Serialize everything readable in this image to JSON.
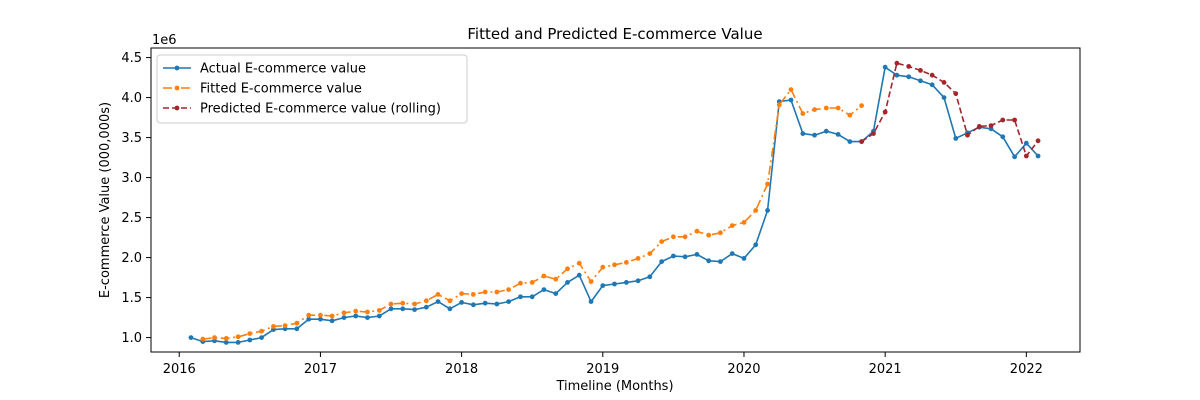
{
  "chart_data": {
    "type": "line",
    "title": "Fitted and Predicted E-commerce Value",
    "xlabel": "Timeline (Months)",
    "ylabel": "E-commerce Value (000,000s)",
    "y_offset_label": "1e6",
    "xlim": [
      2015.8,
      2022.38
    ],
    "ylim": [
      820000,
      4620000
    ],
    "x_ticks": [
      2016,
      2017,
      2018,
      2019,
      2020,
      2021,
      2022
    ],
    "x_tick_labels": [
      "2016",
      "2017",
      "2018",
      "2019",
      "2020",
      "2021",
      "2022"
    ],
    "y_ticks": [
      1000000,
      1500000,
      2000000,
      2500000,
      3000000,
      3500000,
      4000000,
      4500000
    ],
    "y_tick_labels": [
      "1.0",
      "1.5",
      "2.0",
      "2.5",
      "3.0",
      "3.5",
      "4.0",
      "4.5"
    ],
    "grid": false,
    "legend_position": "top-left",
    "series": [
      {
        "name": "Actual E-commerce value",
        "color": "#1f77b4",
        "style": "solid-marker",
        "x": [
          2016.083,
          2016.167,
          2016.25,
          2016.333,
          2016.417,
          2016.5,
          2016.583,
          2016.667,
          2016.75,
          2016.833,
          2016.917,
          2017.0,
          2017.083,
          2017.167,
          2017.25,
          2017.333,
          2017.417,
          2017.5,
          2017.583,
          2017.667,
          2017.75,
          2017.833,
          2017.917,
          2018.0,
          2018.083,
          2018.167,
          2018.25,
          2018.333,
          2018.417,
          2018.5,
          2018.583,
          2018.667,
          2018.75,
          2018.833,
          2018.917,
          2019.0,
          2019.083,
          2019.167,
          2019.25,
          2019.333,
          2019.417,
          2019.5,
          2019.583,
          2019.667,
          2019.75,
          2019.833,
          2019.917,
          2020.0,
          2020.083,
          2020.167,
          2020.25,
          2020.333,
          2020.417,
          2020.5,
          2020.583,
          2020.667,
          2020.75,
          2020.833,
          2020.917,
          2021.0,
          2021.083,
          2021.167,
          2021.25,
          2021.333,
          2021.417,
          2021.5,
          2021.583,
          2021.667,
          2021.75,
          2021.833,
          2021.917,
          2022.0,
          2022.083
        ],
        "values": [
          1000000,
          950000,
          960000,
          940000,
          940000,
          970000,
          1000000,
          1100000,
          1110000,
          1110000,
          1230000,
          1230000,
          1210000,
          1250000,
          1270000,
          1250000,
          1270000,
          1360000,
          1360000,
          1350000,
          1380000,
          1450000,
          1360000,
          1440000,
          1410000,
          1430000,
          1420000,
          1450000,
          1510000,
          1510000,
          1600000,
          1550000,
          1690000,
          1780000,
          1450000,
          1650000,
          1670000,
          1690000,
          1710000,
          1760000,
          1950000,
          2020000,
          2010000,
          2040000,
          1960000,
          1950000,
          2050000,
          1990000,
          2160000,
          2590000,
          3950000,
          3970000,
          3550000,
          3530000,
          3580000,
          3540000,
          3450000,
          3450000,
          3580000,
          4380000,
          4280000,
          4260000,
          4210000,
          4160000,
          4000000,
          3490000,
          3560000,
          3630000,
          3610000,
          3510000,
          3260000,
          3430000,
          3270000
        ]
      },
      {
        "name": "Fitted E-commerce value",
        "color": "#ff7f0e",
        "style": "dashdot-marker",
        "x": [
          2016.167,
          2016.25,
          2016.333,
          2016.417,
          2016.5,
          2016.583,
          2016.667,
          2016.75,
          2016.833,
          2016.917,
          2017.0,
          2017.083,
          2017.167,
          2017.25,
          2017.333,
          2017.417,
          2017.5,
          2017.583,
          2017.667,
          2017.75,
          2017.833,
          2017.917,
          2018.0,
          2018.083,
          2018.167,
          2018.25,
          2018.333,
          2018.417,
          2018.5,
          2018.583,
          2018.667,
          2018.75,
          2018.833,
          2018.917,
          2019.0,
          2019.083,
          2019.167,
          2019.25,
          2019.333,
          2019.417,
          2019.5,
          2019.583,
          2019.667,
          2019.75,
          2019.833,
          2019.917,
          2020.0,
          2020.083,
          2020.167,
          2020.25,
          2020.333,
          2020.417,
          2020.5,
          2020.583,
          2020.667,
          2020.75,
          2020.833
        ],
        "values": [
          980000,
          1000000,
          990000,
          1010000,
          1050000,
          1080000,
          1140000,
          1150000,
          1180000,
          1280000,
          1280000,
          1270000,
          1310000,
          1330000,
          1320000,
          1340000,
          1420000,
          1430000,
          1420000,
          1460000,
          1540000,
          1460000,
          1550000,
          1540000,
          1570000,
          1570000,
          1600000,
          1680000,
          1690000,
          1770000,
          1730000,
          1860000,
          1930000,
          1700000,
          1880000,
          1910000,
          1940000,
          1990000,
          2050000,
          2200000,
          2260000,
          2260000,
          2330000,
          2280000,
          2310000,
          2400000,
          2440000,
          2590000,
          2920000,
          3910000,
          4100000,
          3800000,
          3850000,
          3870000,
          3870000,
          3780000,
          3900000
        ]
      },
      {
        "name": "Predicted E-commerce value (rolling)",
        "color": "#a4262c",
        "style": "dashed-marker",
        "x": [
          2020.833,
          2020.917,
          2021.0,
          2021.083,
          2021.167,
          2021.25,
          2021.333,
          2021.417,
          2021.5,
          2021.583,
          2021.667,
          2021.75,
          2021.833,
          2021.917,
          2022.0,
          2022.083
        ],
        "values": [
          3450000,
          3550000,
          3820000,
          4430000,
          4390000,
          4340000,
          4280000,
          4190000,
          4050000,
          3530000,
          3640000,
          3650000,
          3720000,
          3720000,
          3270000,
          3460000
        ]
      }
    ]
  }
}
